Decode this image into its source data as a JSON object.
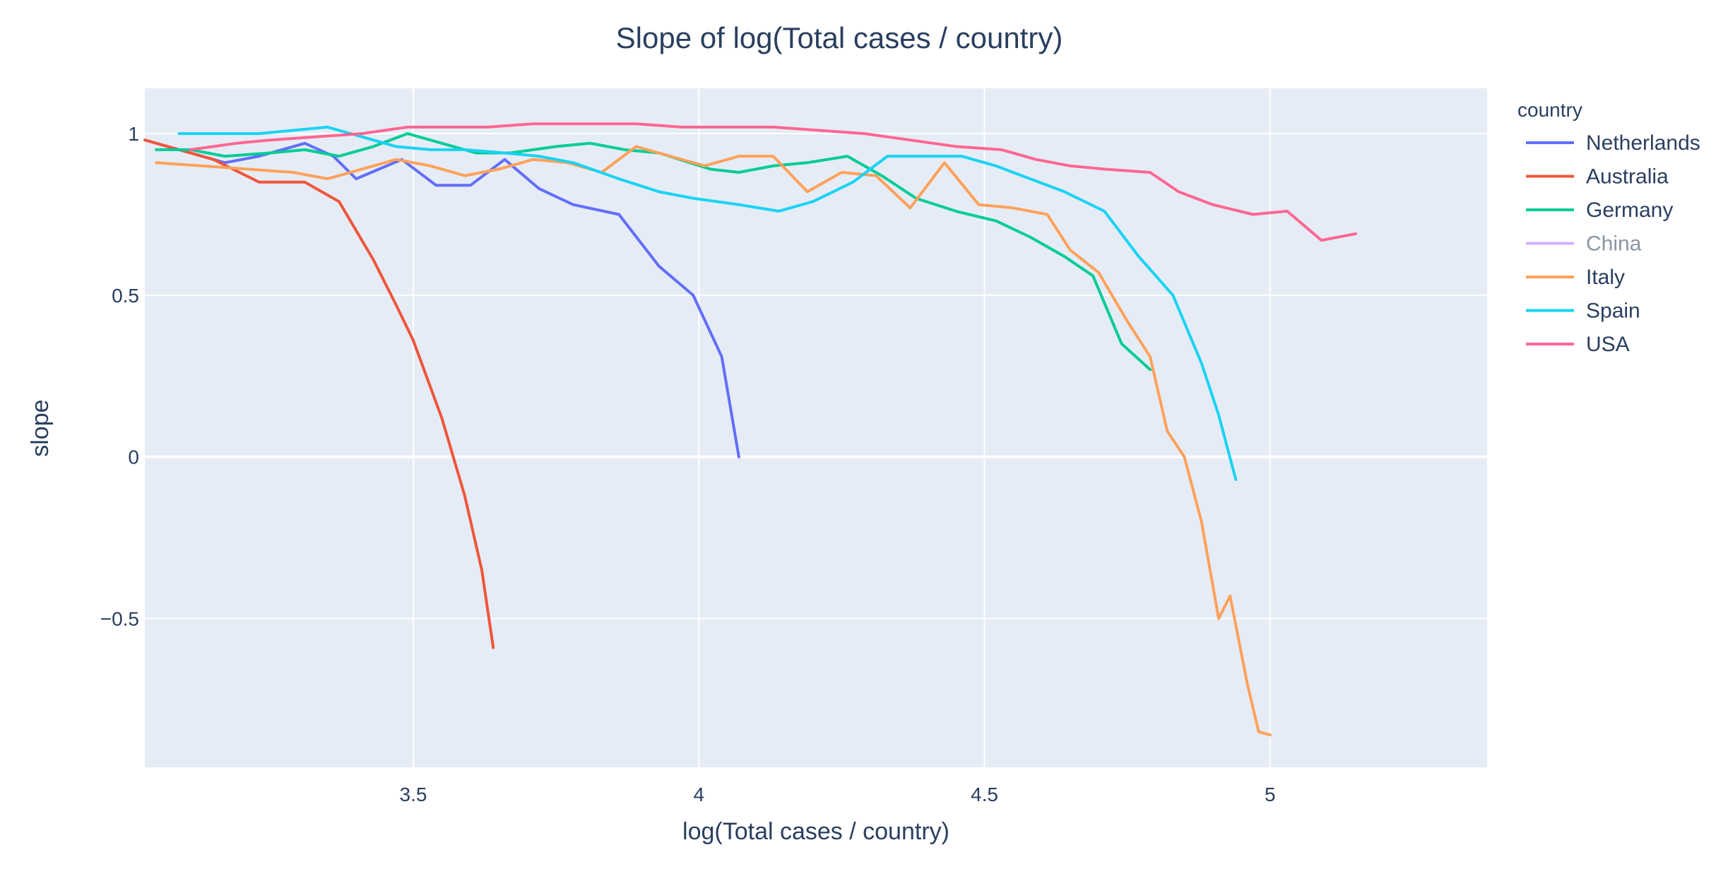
{
  "chart_data": {
    "type": "line",
    "title": "Slope of log(Total cases / country)",
    "xlabel": "log(Total cases / country)",
    "ylabel": "slope",
    "xlim": [
      3.03,
      5.38
    ],
    "ylim": [
      -0.96,
      1.14
    ],
    "xticks": [
      3.5,
      4,
      4.5,
      5
    ],
    "xtick_labels": [
      "3.5",
      "4",
      "4.5",
      "5"
    ],
    "yticks": [
      -0.5,
      0,
      0.5,
      1
    ],
    "ytick_labels": [
      "−0.5",
      "0",
      "0.5",
      "1"
    ],
    "grid": true,
    "legend_title": "country",
    "legend_position": "right",
    "series": [
      {
        "name": "Netherlands",
        "color": "#636efa",
        "visible": true,
        "x": [
          3.05,
          3.11,
          3.17,
          3.23,
          3.29,
          3.31,
          3.36,
          3.4,
          3.44,
          3.48,
          3.54,
          3.6,
          3.66,
          3.72,
          3.78,
          3.86,
          3.93,
          3.99,
          4.04,
          4.07
        ],
        "y": [
          0.97,
          0.94,
          0.91,
          0.93,
          0.96,
          0.97,
          0.93,
          0.86,
          0.89,
          0.92,
          0.84,
          0.84,
          0.92,
          0.83,
          0.78,
          0.75,
          0.59,
          0.5,
          0.31,
          0.0
        ]
      },
      {
        "name": "Australia",
        "color": "#EF553B",
        "visible": true,
        "x": [
          3.03,
          3.09,
          3.15,
          3.23,
          3.31,
          3.37,
          3.43,
          3.47,
          3.5,
          3.55,
          3.59,
          3.62,
          3.64
        ],
        "y": [
          0.98,
          0.95,
          0.92,
          0.85,
          0.85,
          0.79,
          0.61,
          0.47,
          0.36,
          0.12,
          -0.12,
          -0.35,
          -0.59
        ]
      },
      {
        "name": "Germany",
        "color": "#00cc96",
        "visible": true,
        "x": [
          3.05,
          3.11,
          3.17,
          3.25,
          3.31,
          3.37,
          3.43,
          3.49,
          3.55,
          3.61,
          3.67,
          3.75,
          3.81,
          3.87,
          3.93,
          4.02,
          4.07,
          4.13,
          4.19,
          4.26,
          4.32,
          4.38,
          4.45,
          4.52,
          4.58,
          4.64,
          4.69,
          4.74,
          4.79
        ],
        "y": [
          0.95,
          0.95,
          0.93,
          0.94,
          0.95,
          0.93,
          0.96,
          1.0,
          0.97,
          0.94,
          0.94,
          0.96,
          0.97,
          0.95,
          0.94,
          0.89,
          0.88,
          0.9,
          0.91,
          0.93,
          0.87,
          0.8,
          0.76,
          0.73,
          0.68,
          0.62,
          0.56,
          0.35,
          0.27
        ]
      },
      {
        "name": "China",
        "color": "#ab63fa",
        "visible": false,
        "x": [],
        "y": []
      },
      {
        "name": "Italy",
        "color": "#FFA15A",
        "visible": true,
        "x": [
          3.05,
          3.13,
          3.21,
          3.29,
          3.35,
          3.41,
          3.47,
          3.53,
          3.59,
          3.65,
          3.71,
          3.77,
          3.83,
          3.89,
          3.95,
          4.01,
          4.07,
          4.13,
          4.19,
          4.25,
          4.31,
          4.37,
          4.43,
          4.49,
          4.55,
          4.61,
          4.65,
          4.7,
          4.75,
          4.79,
          4.82,
          4.85,
          4.88,
          4.91,
          4.93,
          4.96,
          4.98,
          5.0
        ],
        "y": [
          0.91,
          0.9,
          0.89,
          0.88,
          0.86,
          0.89,
          0.92,
          0.9,
          0.87,
          0.89,
          0.92,
          0.91,
          0.88,
          0.96,
          0.93,
          0.9,
          0.93,
          0.93,
          0.82,
          0.88,
          0.87,
          0.77,
          0.91,
          0.78,
          0.77,
          0.75,
          0.64,
          0.57,
          0.42,
          0.31,
          0.08,
          0.0,
          -0.2,
          -0.5,
          -0.43,
          -0.7,
          -0.85,
          -0.86
        ]
      },
      {
        "name": "Spain",
        "color": "#19d3f3",
        "visible": true,
        "x": [
          3.09,
          3.15,
          3.23,
          3.29,
          3.35,
          3.41,
          3.47,
          3.53,
          3.59,
          3.66,
          3.72,
          3.78,
          3.86,
          3.93,
          3.99,
          4.07,
          4.14,
          4.2,
          4.27,
          4.33,
          4.39,
          4.46,
          4.52,
          4.58,
          4.64,
          4.71,
          4.77,
          4.83,
          4.88,
          4.91,
          4.94
        ],
        "y": [
          1.0,
          1.0,
          1.0,
          1.01,
          1.02,
          0.99,
          0.96,
          0.95,
          0.95,
          0.94,
          0.93,
          0.91,
          0.86,
          0.82,
          0.8,
          0.78,
          0.76,
          0.79,
          0.85,
          0.93,
          0.93,
          0.93,
          0.9,
          0.86,
          0.82,
          0.76,
          0.62,
          0.5,
          0.29,
          0.13,
          -0.07
        ]
      },
      {
        "name": "USA",
        "color": "#FF6692",
        "visible": true,
        "x": [
          3.11,
          3.19,
          3.25,
          3.33,
          3.41,
          3.49,
          3.55,
          3.63,
          3.71,
          3.81,
          3.89,
          3.97,
          4.05,
          4.13,
          4.21,
          4.29,
          4.37,
          4.45,
          4.53,
          4.59,
          4.65,
          4.71,
          4.79,
          4.84,
          4.9,
          4.97,
          5.03,
          5.09,
          5.15
        ],
        "y": [
          0.95,
          0.97,
          0.98,
          0.99,
          1.0,
          1.02,
          1.02,
          1.02,
          1.03,
          1.03,
          1.03,
          1.02,
          1.02,
          1.02,
          1.01,
          1.0,
          0.98,
          0.96,
          0.95,
          0.92,
          0.9,
          0.89,
          0.88,
          0.82,
          0.78,
          0.75,
          0.76,
          0.67,
          0.69
        ]
      }
    ]
  }
}
